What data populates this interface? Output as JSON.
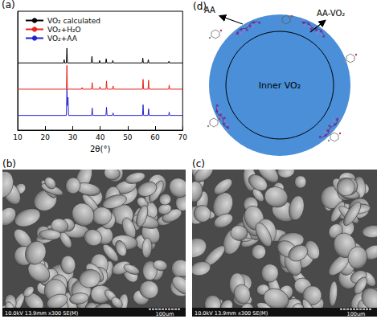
{
  "chart_data": {
    "type": "line",
    "x_label": "2θ(°)",
    "xlim": [
      10,
      70
    ],
    "xticks": [
      10,
      20,
      30,
      40,
      50,
      60,
      70
    ],
    "ylim": [
      0,
      145
    ],
    "yticks": [],
    "tick_labels": "x",
    "grid": false,
    "legend": "upper left",
    "series": [
      {
        "name": "VO₂ calculated",
        "color": "#000000",
        "x": [
          10,
          26.7,
          26.9,
          27.1,
          27.7,
          27.9,
          28.1,
          36.8,
          37.0,
          37.2,
          39.6,
          39.8,
          40.0,
          42.0,
          42.2,
          42.4,
          44.4,
          44.6,
          44.8,
          55.3,
          55.5,
          55.7,
          57.3,
          57.5,
          57.7,
          64.8,
          65.0,
          65.2,
          70
        ],
        "values": [
          82,
          82,
          86,
          82,
          82,
          100,
          82,
          82,
          90,
          82,
          82,
          85,
          82,
          82,
          87,
          82,
          82,
          85,
          82,
          82,
          88,
          82,
          82,
          86,
          82,
          82,
          84,
          82,
          82
        ]
      },
      {
        "name": "VO₂+H₂O",
        "color": "#e8251e",
        "x": [
          10,
          27.7,
          27.9,
          28.1,
          33.2,
          33.4,
          33.6,
          36.9,
          37.1,
          37.3,
          39.7,
          39.9,
          40.1,
          42.1,
          42.3,
          42.5,
          44.5,
          44.7,
          44.9,
          55.4,
          55.6,
          55.8,
          57.4,
          57.6,
          57.8,
          64.9,
          65.1,
          65.3,
          70
        ],
        "values": [
          50,
          50,
          79,
          50,
          50,
          52,
          50,
          50,
          58,
          50,
          50,
          53,
          50,
          50,
          60,
          50,
          50,
          54,
          50,
          50,
          62,
          50,
          50,
          61,
          50,
          50,
          55,
          50,
          50
        ]
      },
      {
        "name": "VO₂+AA",
        "color": "#2323d6",
        "x": [
          10,
          27.7,
          27.9,
          28.1,
          28.3,
          28.5,
          36.9,
          37.1,
          37.3,
          42.1,
          42.3,
          42.5,
          44.5,
          44.7,
          44.9,
          55.4,
          55.6,
          55.8,
          57.4,
          57.6,
          57.8,
          64.9,
          65.1,
          65.3,
          70
        ],
        "values": [
          18,
          18,
          50,
          30,
          40,
          18,
          18,
          27,
          18,
          18,
          28,
          18,
          18,
          21,
          18,
          18,
          31,
          18,
          18,
          26,
          18,
          18,
          22,
          18,
          18
        ]
      }
    ]
  },
  "panels": {
    "a": {
      "label": "(a)"
    },
    "b": {
      "label": "(b)",
      "info": "10.0kV 13.9mm x300 SE(M)",
      "scale_bar": "100um"
    },
    "c": {
      "label": "(c)",
      "info": "10.0kV 13.9mm x300 SE(M)",
      "scale_bar": "100um"
    },
    "d": {
      "label": "(d)",
      "core": "Inner VO₂",
      "released": "AA",
      "attached": "AA-VO₂"
    }
  }
}
